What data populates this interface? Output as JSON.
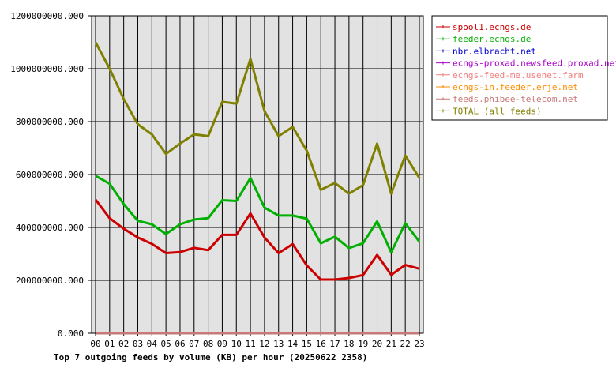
{
  "chart_data": {
    "type": "line",
    "title": "Top 7 outgoing feeds by volume (KB) per hour (20250622 2358)",
    "xlabel": "",
    "ylabel": "",
    "ylim": [
      0,
      1200000000
    ],
    "yticks": [
      0,
      200000000,
      400000000,
      600000000,
      800000000,
      1000000000,
      1200000000
    ],
    "ytick_labels": [
      "0.000",
      "200000000.000",
      "400000000.000",
      "600000000.000",
      "800000000.000",
      "1000000000.000",
      "1200000000.000"
    ],
    "categories": [
      "00",
      "01",
      "02",
      "03",
      "04",
      "05",
      "06",
      "07",
      "08",
      "09",
      "10",
      "11",
      "12",
      "13",
      "14",
      "15",
      "16",
      "17",
      "18",
      "19",
      "20",
      "21",
      "22",
      "23"
    ],
    "grid": true,
    "legend_position": "right",
    "colors": {
      "plot_bg": "#e2e2e2",
      "grid": "#000000"
    },
    "series": [
      {
        "name": "spool1.ecngs.de",
        "color": "#cc0000",
        "values": [
          505000000,
          435000000,
          395000000,
          362000000,
          338000000,
          303000000,
          307000000,
          323000000,
          314000000,
          372000000,
          372000000,
          453000000,
          362000000,
          303000000,
          337000000,
          256000000,
          203000000,
          203000000,
          209000000,
          220000000,
          296000000,
          221000000,
          258000000,
          244000000
        ]
      },
      {
        "name": "feeder.ecngs.de",
        "color": "#00b000",
        "values": [
          595000000,
          565000000,
          488000000,
          425000000,
          412000000,
          375000000,
          412000000,
          430000000,
          435000000,
          503000000,
          500000000,
          587000000,
          475000000,
          445000000,
          445000000,
          433000000,
          340000000,
          365000000,
          322000000,
          340000000,
          423000000,
          306000000,
          416000000,
          346000000
        ]
      },
      {
        "name": "nbr.elbracht.net",
        "color": "#0000cc",
        "values": [
          0,
          0,
          0,
          0,
          0,
          0,
          0,
          0,
          0,
          0,
          0,
          0,
          0,
          0,
          0,
          0,
          0,
          0,
          0,
          0,
          0,
          0,
          0,
          0
        ]
      },
      {
        "name": "ecngs-proxad.newsfeed.proxad.net",
        "color": "#aa00cc",
        "values": [
          0,
          0,
          0,
          0,
          0,
          0,
          0,
          0,
          0,
          0,
          0,
          0,
          0,
          0,
          0,
          0,
          0,
          0,
          0,
          0,
          0,
          0,
          0,
          0
        ]
      },
      {
        "name": "ecngs-feed-me.usenet.farm",
        "color": "#f08080",
        "values": [
          0,
          0,
          0,
          0,
          0,
          0,
          0,
          0,
          0,
          0,
          0,
          0,
          0,
          0,
          0,
          0,
          0,
          0,
          0,
          0,
          0,
          0,
          0,
          0
        ]
      },
      {
        "name": "ecngs-in.feeder.erje.net",
        "color": "#ff8c00",
        "values": [
          0,
          0,
          0,
          0,
          0,
          0,
          0,
          0,
          0,
          0,
          0,
          0,
          0,
          0,
          0,
          0,
          0,
          0,
          0,
          0,
          0,
          0,
          0,
          0
        ]
      },
      {
        "name": "feeds.phibee-telecom.net",
        "color": "#c87878",
        "values": [
          0,
          0,
          0,
          0,
          0,
          0,
          0,
          0,
          0,
          0,
          0,
          0,
          0,
          0,
          0,
          0,
          0,
          0,
          0,
          0,
          0,
          0,
          0,
          0
        ]
      },
      {
        "name": "TOTAL (all feeds)",
        "color": "#808000",
        "values": [
          1100000000,
          1000000000,
          885000000,
          790000000,
          752000000,
          678000000,
          717000000,
          752000000,
          745000000,
          875000000,
          868000000,
          1037000000,
          840000000,
          745000000,
          780000000,
          690000000,
          542000000,
          568000000,
          528000000,
          560000000,
          717000000,
          528000000,
          672000000,
          587000000
        ]
      }
    ]
  }
}
